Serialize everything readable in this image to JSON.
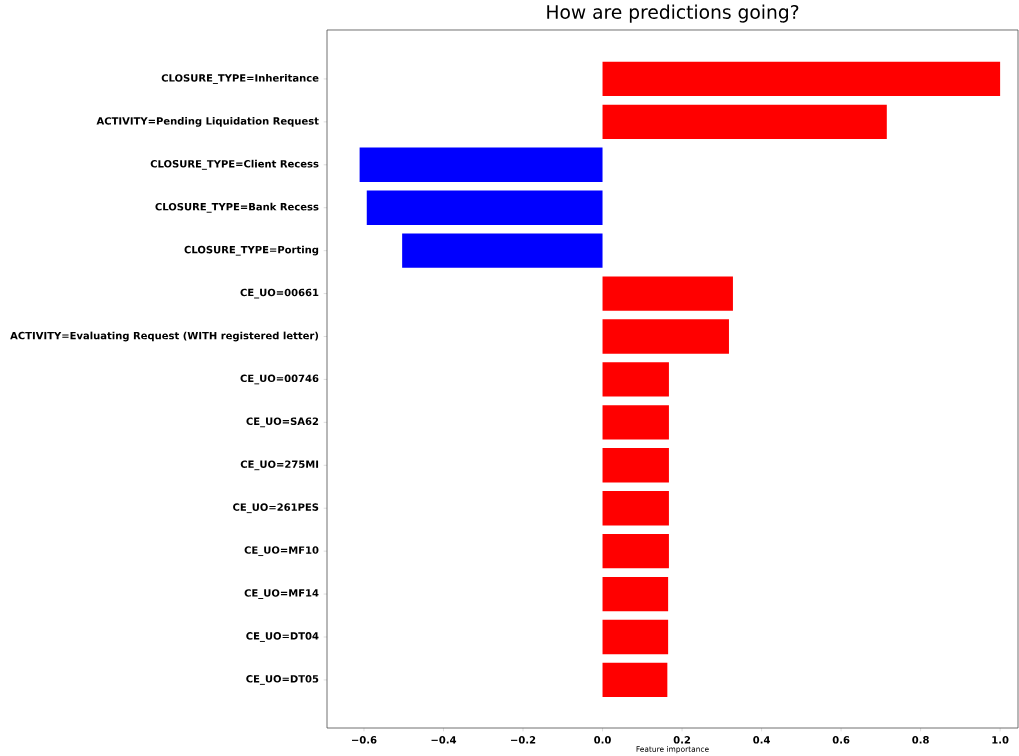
{
  "chart_data": {
    "type": "bar",
    "orientation": "horizontal",
    "title": "How are predictions going?",
    "xlabel": "Feature importance",
    "categories": [
      "CLOSURE_TYPE=Inheritance",
      "ACTIVITY=Pending Liquidation Request",
      "CLOSURE_TYPE=Client Recess",
      "CLOSURE_TYPE=Bank Recess",
      "CLOSURE_TYPE=Porting",
      "CE_UO=00661",
      "ACTIVITY=Evaluating Request (WITH registered letter)",
      "CE_UO=00746",
      "CE_UO=SA62",
      "CE_UO=275MI",
      "CE_UO=261PES",
      "CE_UO=MF10",
      "CE_UO=MF14",
      "CE_UO=DT04",
      "CE_UO=DT05"
    ],
    "values": [
      1.0,
      0.715,
      -0.611,
      -0.593,
      -0.504,
      0.328,
      0.318,
      0.167,
      0.167,
      0.167,
      0.167,
      0.167,
      0.165,
      0.165,
      0.163
    ],
    "colors": [
      "#ff0000",
      "#ff0000",
      "#0000ff",
      "#0000ff",
      "#0000ff",
      "#ff0000",
      "#ff0000",
      "#ff0000",
      "#ff0000",
      "#ff0000",
      "#ff0000",
      "#ff0000",
      "#ff0000",
      "#ff0000",
      "#ff0000"
    ],
    "xlim": [
      -0.693,
      1.045
    ],
    "xticks": [
      {
        "value": -0.6,
        "label": "−0.6"
      },
      {
        "value": -0.4,
        "label": "−0.4"
      },
      {
        "value": -0.2,
        "label": "−0.2"
      },
      {
        "value": 0.0,
        "label": "0.0"
      },
      {
        "value": 0.2,
        "label": "0.2"
      },
      {
        "value": 0.4,
        "label": "0.4"
      },
      {
        "value": 0.6,
        "label": "0.6"
      },
      {
        "value": 0.8,
        "label": "0.8"
      },
      {
        "value": 1.0,
        "label": "1.0"
      }
    ]
  }
}
